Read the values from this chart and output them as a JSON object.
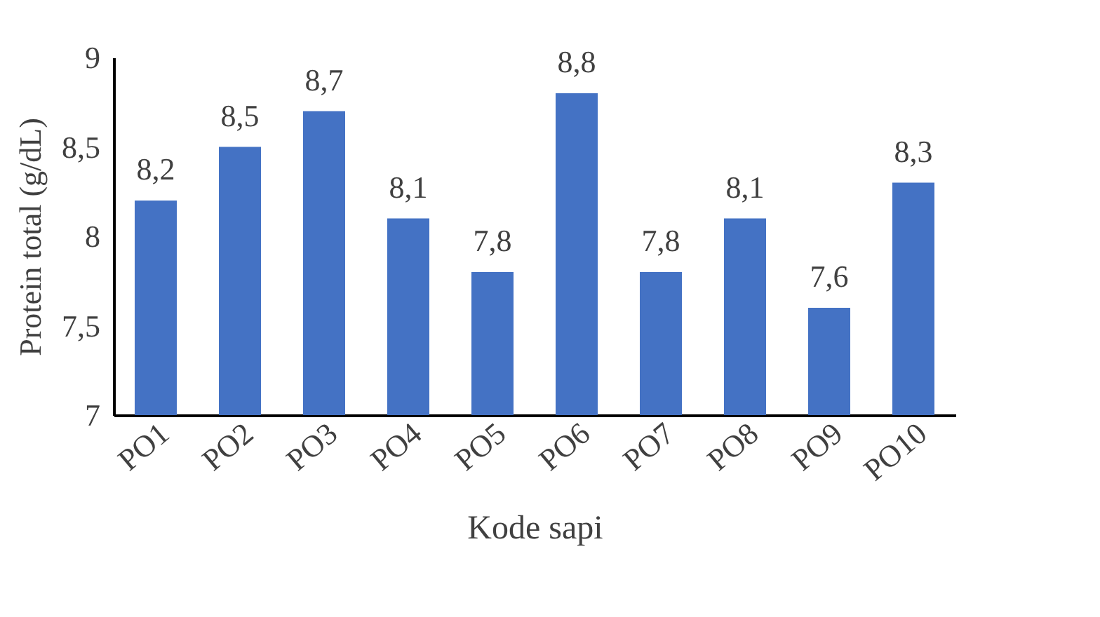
{
  "chart_data": {
    "type": "bar",
    "xlabel": "Kode sapi",
    "ylabel": "Protein total (g/dL)",
    "categories": [
      "PO1",
      "PO2",
      "PO3",
      "PO4",
      "PO5",
      "PO6",
      "PO7",
      "PO8",
      "PO9",
      "PO10"
    ],
    "values": [
      8.2,
      8.5,
      8.7,
      8.1,
      7.8,
      8.8,
      7.8,
      8.1,
      7.6,
      8.3
    ],
    "value_labels": [
      "8,2",
      "8,5",
      "8,7",
      "8,1",
      "7,8",
      "8,8",
      "7,8",
      "8,1",
      "7,6",
      "8,3"
    ],
    "color": "#4472c4",
    "ylim": [
      7,
      9
    ],
    "yticks": [
      7,
      {
        "value": 7.5,
        "label": "7,5"
      },
      8,
      {
        "value": 8.5,
        "label": "8,5"
      },
      9
    ],
    "grid": false
  }
}
